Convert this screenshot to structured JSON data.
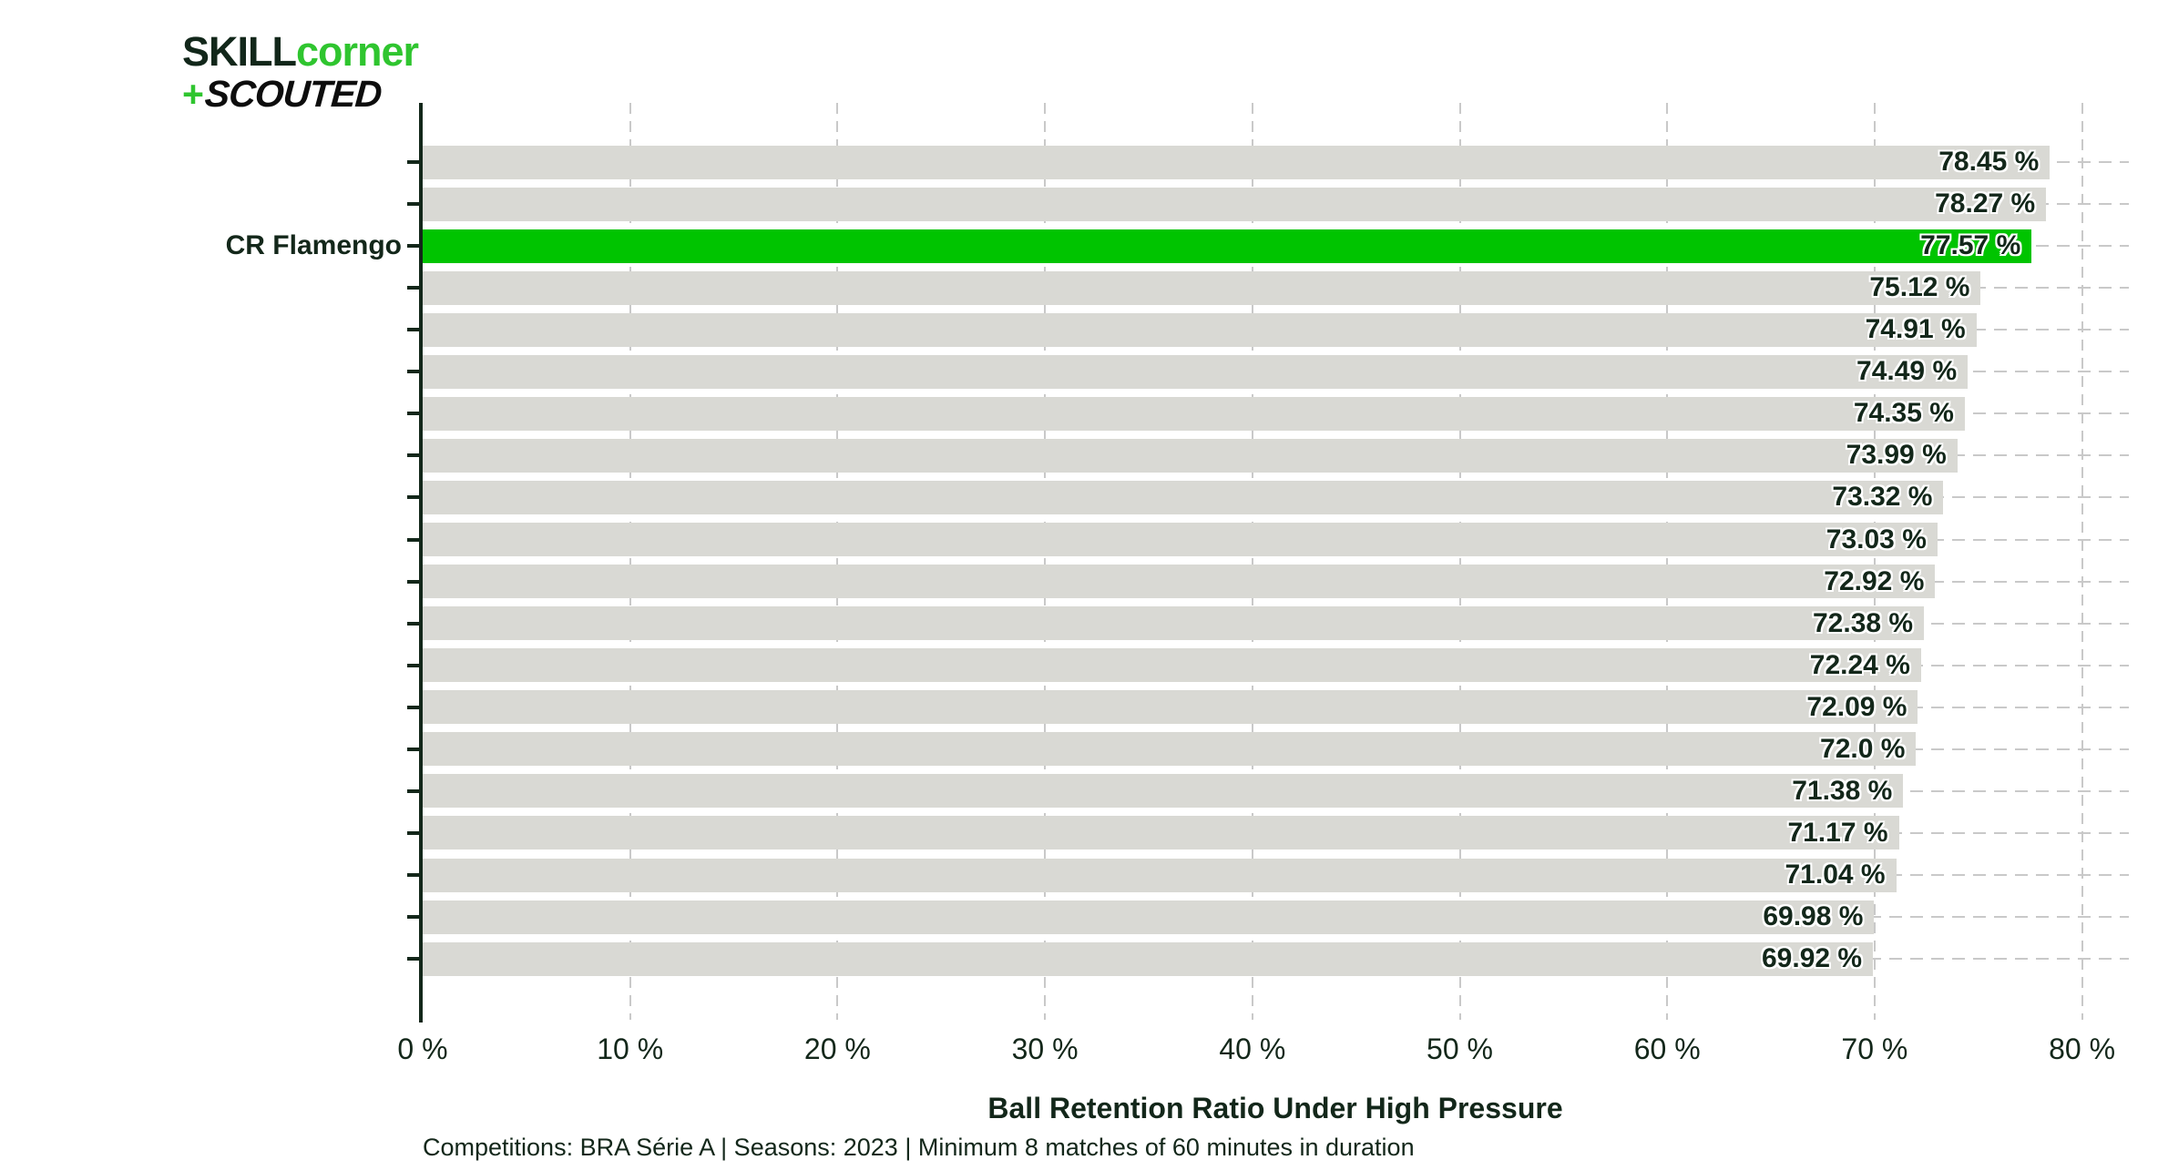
{
  "logo": {
    "part1": "SKILL",
    "part2": "corner",
    "plus": "+",
    "part3": "SCOUTED"
  },
  "colors": {
    "highlight_green": "#00c400",
    "bar_gray": "#d9d9d4",
    "text_dark": "#13271a",
    "grid_gray": "#c9c9c9",
    "logo_green": "#2fc52f"
  },
  "chart_data": {
    "type": "bar",
    "orientation": "horizontal",
    "xlabel": "Ball Retention Ratio Under High Pressure",
    "caption": "Competitions: BRA Série A | Seasons: 2023 | Minimum 8 matches of 60 minutes in duration",
    "x_ticks": [
      "0 %",
      "10 %",
      "20 %",
      "30 %",
      "40 %",
      "50 %",
      "60 %",
      "70 %",
      "80 %"
    ],
    "x_tick_values": [
      0,
      10,
      20,
      30,
      40,
      50,
      60,
      70,
      80
    ],
    "xlim": [
      0,
      82.2
    ],
    "grid": "dashed-both",
    "legend": "none",
    "highlighted_team": "CR Flamengo",
    "bars": [
      {
        "label": "",
        "value": 78.45,
        "display": "78.45 %",
        "highlight": false
      },
      {
        "label": "",
        "value": 78.27,
        "display": "78.27 %",
        "highlight": false
      },
      {
        "label": "CR Flamengo",
        "value": 77.57,
        "display": "77.57 %",
        "highlight": true
      },
      {
        "label": "",
        "value": 75.12,
        "display": "75.12 %",
        "highlight": false
      },
      {
        "label": "",
        "value": 74.91,
        "display": "74.91 %",
        "highlight": false
      },
      {
        "label": "",
        "value": 74.49,
        "display": "74.49 %",
        "highlight": false
      },
      {
        "label": "",
        "value": 74.35,
        "display": "74.35 %",
        "highlight": false
      },
      {
        "label": "",
        "value": 73.99,
        "display": "73.99 %",
        "highlight": false
      },
      {
        "label": "",
        "value": 73.32,
        "display": "73.32 %",
        "highlight": false
      },
      {
        "label": "",
        "value": 73.03,
        "display": "73.03 %",
        "highlight": false
      },
      {
        "label": "",
        "value": 72.92,
        "display": "72.92 %",
        "highlight": false
      },
      {
        "label": "",
        "value": 72.38,
        "display": "72.38 %",
        "highlight": false
      },
      {
        "label": "",
        "value": 72.24,
        "display": "72.24 %",
        "highlight": false
      },
      {
        "label": "",
        "value": 72.09,
        "display": "72.09 %",
        "highlight": false
      },
      {
        "label": "",
        "value": 72.0,
        "display": "72.0 %",
        "highlight": false
      },
      {
        "label": "",
        "value": 71.38,
        "display": "71.38 %",
        "highlight": false
      },
      {
        "label": "",
        "value": 71.17,
        "display": "71.17 %",
        "highlight": false
      },
      {
        "label": "",
        "value": 71.04,
        "display": "71.04 %",
        "highlight": false
      },
      {
        "label": "",
        "value": 69.98,
        "display": "69.98 %",
        "highlight": false
      },
      {
        "label": "",
        "value": 69.92,
        "display": "69.92 %",
        "highlight": false
      }
    ]
  }
}
